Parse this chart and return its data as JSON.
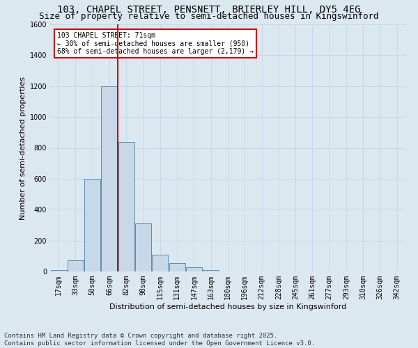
{
  "title1": "103, CHAPEL STREET, PENSNETT, BRIERLEY HILL, DY5 4EG",
  "title2": "Size of property relative to semi-detached houses in Kingswinford",
  "xlabel": "Distribution of semi-detached houses by size in Kingswinford",
  "ylabel": "Number of semi-detached properties",
  "footnote": "Contains HM Land Registry data © Crown copyright and database right 2025.\nContains public sector information licensed under the Open Government Licence v3.0.",
  "bin_labels": [
    "17sqm",
    "33sqm",
    "50sqm",
    "66sqm",
    "82sqm",
    "98sqm",
    "115sqm",
    "131sqm",
    "147sqm",
    "163sqm",
    "180sqm",
    "196sqm",
    "212sqm",
    "228sqm",
    "245sqm",
    "261sqm",
    "277sqm",
    "293sqm",
    "310sqm",
    "326sqm",
    "342sqm"
  ],
  "bin_values": [
    10,
    70,
    600,
    1200,
    840,
    310,
    110,
    55,
    25,
    10,
    0,
    0,
    0,
    0,
    0,
    0,
    0,
    0,
    0,
    0,
    0
  ],
  "bar_color": "#c8d8e8",
  "bar_edge_color": "#5b8db0",
  "vline_color": "#cc0000",
  "vline_bin": 3,
  "annotation_text": "103 CHAPEL STREET: 71sqm\n← 30% of semi-detached houses are smaller (950)\n68% of semi-detached houses are larger (2,179) →",
  "annotation_box_color": "#ffffff",
  "annotation_box_edge": "#cc0000",
  "ylim": [
    0,
    1600
  ],
  "yticks": [
    0,
    200,
    400,
    600,
    800,
    1000,
    1200,
    1400,
    1600
  ],
  "grid_color": "#c8d8e8",
  "background_color": "#dce8f0",
  "title1_fontsize": 10,
  "title2_fontsize": 9,
  "axis_fontsize": 8,
  "tick_fontsize": 7,
  "footnote_fontsize": 6.5
}
